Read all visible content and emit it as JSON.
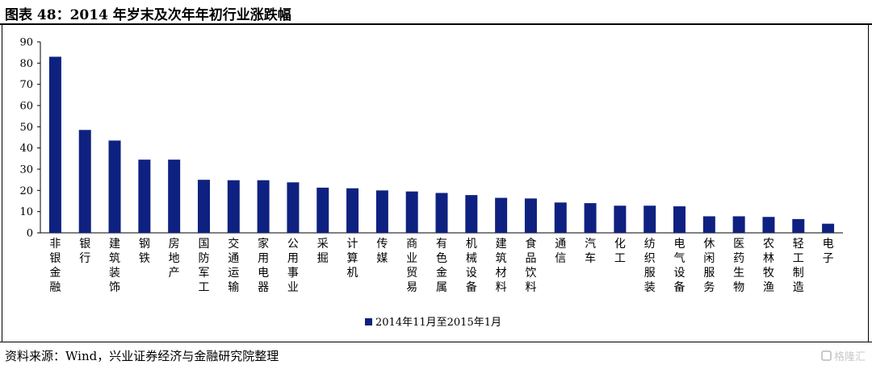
{
  "header": {
    "title": "图表 48：2014 年岁末及次年年初行业涨跌幅"
  },
  "footer": {
    "source": "资料来源：Wind，兴业证券经济与金融研究院整理",
    "watermark": "格隆汇"
  },
  "chart_data": {
    "type": "bar",
    "categories": [
      "非银金融",
      "银行",
      "建筑装饰",
      "钢铁",
      "房地产",
      "国防军工",
      "交通运输",
      "家用电器",
      "公用事业",
      "采掘",
      "计算机",
      "传媒",
      "商业贸易",
      "有色金属",
      "机械设备",
      "建筑材料",
      "食品饮料",
      "通信",
      "汽车",
      "化工",
      "纺织服装",
      "电气设备",
      "休闲服务",
      "医药生物",
      "农林牧渔",
      "轻工制造",
      "电子"
    ],
    "series": [
      {
        "name": "2014年11月至2015年1月",
        "values": [
          83,
          48.5,
          43.5,
          34.5,
          34.5,
          25,
          24.8,
          24.8,
          23.8,
          21.3,
          21,
          20,
          19.5,
          18.8,
          17.8,
          16.5,
          16.2,
          14.3,
          14,
          12.8,
          12.8,
          12.5,
          7.8,
          7.8,
          7.5,
          6.5,
          4.3
        ]
      }
    ],
    "yticks": [
      0,
      10,
      20,
      30,
      40,
      50,
      60,
      70,
      80,
      90
    ],
    "ylim": [
      0,
      90
    ],
    "grid": false,
    "legend": "bottom-center",
    "colors": {
      "bar": "#0f2180",
      "axis": "#000000"
    }
  }
}
